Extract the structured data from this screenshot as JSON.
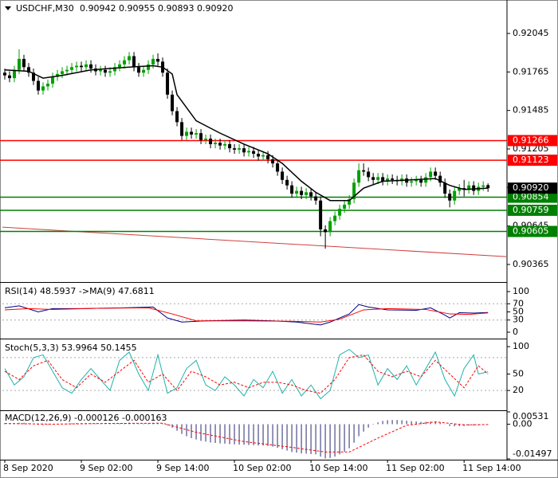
{
  "chart_data": [
    {
      "type": "candlestick",
      "title": "USDCHF,M30",
      "subtitle": "0.90942 0.90955 0.90893 0.90920",
      "categories": [
        "8 Sep 2020",
        null,
        null,
        null,
        null,
        null,
        null,
        null,
        null,
        null,
        null,
        null,
        null,
        null,
        null,
        null,
        "9 Sep 02:00",
        null,
        null,
        null,
        null,
        null,
        null,
        null,
        null,
        null,
        null,
        null,
        null,
        null,
        null,
        null,
        "9 Sep 14:00",
        null,
        null,
        null,
        null,
        null,
        null,
        null,
        null,
        null,
        null,
        null,
        null,
        null,
        null,
        null,
        "10 Sep 02:00",
        null,
        null,
        null,
        null,
        null,
        null,
        null,
        null,
        null,
        null,
        null,
        null,
        null,
        null,
        null,
        "10 Sep 14:00",
        null,
        null,
        null,
        null,
        null,
        null,
        null,
        null,
        null,
        null,
        null,
        null,
        null,
        null,
        null,
        "11 Sep 02:00",
        null,
        null,
        null,
        null,
        null,
        null,
        null,
        null,
        null,
        null,
        null,
        null,
        null,
        null,
        null,
        "11 Sep 14:00",
        null,
        null,
        null,
        null,
        null
      ],
      "open": [
        0.9176,
        0.9174,
        0.9172,
        0.9178,
        0.9186,
        0.918,
        0.9176,
        0.917,
        0.9163,
        0.9166,
        0.9168,
        0.9173,
        0.9175,
        0.9177,
        0.9178,
        0.918,
        0.9181,
        0.918,
        0.9182,
        0.9179,
        0.9177,
        0.9178,
        0.9176,
        0.9177,
        0.918,
        0.9182,
        0.9185,
        0.9188,
        0.918,
        0.9176,
        0.9178,
        0.9182,
        0.9186,
        0.9184,
        0.9176,
        0.916,
        0.9148,
        0.914,
        0.913,
        0.9133,
        0.9131,
        0.9132,
        0.9127,
        0.9128,
        0.9124,
        0.9125,
        0.9123,
        0.9124,
        0.9121,
        0.912,
        0.9121,
        0.9118,
        0.9119,
        0.9117,
        0.9115,
        0.9116,
        0.9113,
        0.911,
        0.9104,
        0.9098,
        0.9094,
        0.9088,
        0.909,
        0.9087,
        0.9089,
        0.9086,
        0.9083,
        0.9062,
        0.906,
        0.9068,
        0.9072,
        0.9077,
        0.908,
        0.9084,
        0.9096,
        0.9105,
        0.9104,
        0.91,
        0.9098,
        0.91,
        0.9097,
        0.9099,
        0.9098,
        0.9097,
        0.9099,
        0.9096,
        0.9097,
        0.9098,
        0.9096,
        0.91,
        0.9104,
        0.9101,
        0.9096,
        0.9088,
        0.9083,
        0.909,
        0.9092,
        0.9091,
        0.9094,
        0.909,
        0.9093,
        0.90942
      ],
      "high": [
        0.9179,
        0.9177,
        0.9181,
        0.9193,
        0.9189,
        0.9183,
        0.9179,
        0.9173,
        0.9169,
        0.9171,
        0.9176,
        0.9178,
        0.918,
        0.9181,
        0.9183,
        0.9184,
        0.9184,
        0.9185,
        0.9185,
        0.9182,
        0.9181,
        0.9181,
        0.918,
        0.9183,
        0.9185,
        0.9188,
        0.9191,
        0.9191,
        0.9183,
        0.9181,
        0.9185,
        0.9189,
        0.919,
        0.9187,
        0.9179,
        0.9163,
        0.9151,
        0.9143,
        0.9136,
        0.9136,
        0.9135,
        0.9135,
        0.9131,
        0.9131,
        0.9128,
        0.9128,
        0.9127,
        0.9127,
        0.9124,
        0.9124,
        0.9124,
        0.9122,
        0.9122,
        0.912,
        0.9119,
        0.9119,
        0.9116,
        0.9113,
        0.9107,
        0.9101,
        0.9097,
        0.9093,
        0.9093,
        0.9092,
        0.9092,
        0.9089,
        0.9086,
        0.9065,
        0.9071,
        0.9075,
        0.908,
        0.9083,
        0.9087,
        0.9099,
        0.911,
        0.911,
        0.9107,
        0.9103,
        0.9103,
        0.9103,
        0.9102,
        0.9102,
        0.9101,
        0.9102,
        0.9102,
        0.91,
        0.9101,
        0.9101,
        0.9103,
        0.9107,
        0.9107,
        0.9104,
        0.9099,
        0.9091,
        0.9093,
        0.9095,
        0.9098,
        0.9097,
        0.9097,
        0.9096,
        0.9097,
        0.90955
      ],
      "low": [
        0.9171,
        0.9169,
        0.9169,
        0.9175,
        0.9177,
        0.9173,
        0.9167,
        0.916,
        0.916,
        0.9163,
        0.9165,
        0.917,
        0.9172,
        0.9174,
        0.9175,
        0.9177,
        0.9177,
        0.9177,
        0.9176,
        0.9174,
        0.9174,
        0.9173,
        0.9173,
        0.9174,
        0.9177,
        0.9179,
        0.9182,
        0.9177,
        0.9173,
        0.9173,
        0.9175,
        0.9179,
        0.9181,
        0.9173,
        0.9157,
        0.9145,
        0.9137,
        0.9127,
        0.9127,
        0.9128,
        0.9128,
        0.9124,
        0.9124,
        0.9121,
        0.9121,
        0.912,
        0.912,
        0.9118,
        0.9117,
        0.9117,
        0.9115,
        0.9115,
        0.9114,
        0.9112,
        0.9112,
        0.911,
        0.9107,
        0.9101,
        0.9095,
        0.9091,
        0.9085,
        0.9085,
        0.9084,
        0.9084,
        0.9083,
        0.908,
        0.9057,
        0.9048,
        0.9057,
        0.9065,
        0.9069,
        0.9074,
        0.9077,
        0.9081,
        0.9093,
        0.9101,
        0.9097,
        0.9095,
        0.9095,
        0.9094,
        0.9094,
        0.9095,
        0.9094,
        0.9094,
        0.9093,
        0.9093,
        0.9094,
        0.9093,
        0.9093,
        0.9097,
        0.9098,
        0.9093,
        0.9085,
        0.9078,
        0.908,
        0.9087,
        0.9086,
        0.9088,
        0.9087,
        0.9087,
        0.909,
        0.90893
      ],
      "close": [
        0.9174,
        0.9172,
        0.9178,
        0.9186,
        0.918,
        0.9176,
        0.917,
        0.9163,
        0.9166,
        0.9168,
        0.9173,
        0.9175,
        0.9177,
        0.9178,
        0.918,
        0.9181,
        0.918,
        0.9182,
        0.9179,
        0.9177,
        0.9178,
        0.9176,
        0.9177,
        0.918,
        0.9182,
        0.9185,
        0.9188,
        0.918,
        0.9176,
        0.9178,
        0.9182,
        0.9186,
        0.9184,
        0.9176,
        0.916,
        0.9148,
        0.914,
        0.913,
        0.9133,
        0.9131,
        0.9132,
        0.9127,
        0.9128,
        0.9124,
        0.9125,
        0.9123,
        0.9124,
        0.9121,
        0.912,
        0.9121,
        0.9118,
        0.9119,
        0.9117,
        0.9115,
        0.9116,
        0.9113,
        0.911,
        0.9104,
        0.9098,
        0.9094,
        0.9088,
        0.909,
        0.9087,
        0.9089,
        0.9086,
        0.9083,
        0.9062,
        0.906,
        0.9068,
        0.9072,
        0.9077,
        0.908,
        0.9084,
        0.9096,
        0.9105,
        0.9104,
        0.91,
        0.9098,
        0.91,
        0.9097,
        0.9099,
        0.9098,
        0.9097,
        0.9099,
        0.9096,
        0.9097,
        0.9098,
        0.9096,
        0.91,
        0.9104,
        0.9101,
        0.9096,
        0.9088,
        0.9083,
        0.909,
        0.9092,
        0.9091,
        0.9094,
        0.909,
        0.9093,
        0.9094,
        0.9092
      ],
      "up_color": "#00a000",
      "down_color": "#000000",
      "ma": {
        "color": "#000000",
        "x": [
          0,
          5,
          8,
          12,
          18,
          26,
          31,
          33,
          35,
          36,
          40,
          45,
          50,
          55,
          58,
          62,
          65,
          68,
          72,
          75,
          79,
          85,
          90,
          93,
          96,
          101
        ],
        "values": [
          0.9178,
          0.9177,
          0.9172,
          0.9174,
          0.9178,
          0.918,
          0.9181,
          0.918,
          0.9175,
          0.916,
          0.9141,
          0.9132,
          0.9124,
          0.9117,
          0.911,
          0.9097,
          0.9089,
          0.9083,
          0.9083,
          0.9092,
          0.9097,
          0.9098,
          0.9099,
          0.9094,
          0.9091,
          0.9092
        ]
      },
      "trendline": {
        "color": "#d04040",
        "x": [
          -0.5,
          104.8
        ],
        "values": [
          0.90636,
          0.90422
        ]
      },
      "hlines": [
        {
          "value": 0.91266,
          "color": "#ff0000"
        },
        {
          "value": 0.91123,
          "color": "#ff0000"
        },
        {
          "value": 0.90854,
          "color": "#008000"
        },
        {
          "value": 0.90759,
          "color": "#008000"
        },
        {
          "value": 0.90605,
          "color": "#008000"
        }
      ],
      "current": {
        "value": 0.9092,
        "label": "0.90920",
        "color": "#000000"
      },
      "xlim": [
        -0.5,
        104.8
      ],
      "ylim": [
        0.90243,
        0.92271
      ],
      "yticks": [
        0.92045,
        0.91765,
        0.91485,
        0.91205,
        0.90925,
        0.90645,
        0.90365
      ]
    },
    {
      "type": "line",
      "title": "RSI(14) 48.5937  ->MA(9) 47.6811",
      "series": [
        {
          "color": "#000080",
          "x": [
            0,
            3,
            7,
            10,
            16,
            25,
            31,
            34,
            37,
            42,
            50,
            56,
            61,
            66,
            68,
            72,
            74,
            76,
            80,
            86,
            89,
            92,
            93,
            95,
            98,
            101
          ],
          "values": [
            60,
            65,
            50,
            58,
            58,
            60,
            62,
            35,
            25,
            28,
            30,
            28,
            25,
            18,
            25,
            45,
            68,
            62,
            55,
            54,
            60,
            42,
            35,
            48,
            47,
            48.5937
          ]
        },
        {
          "color": "#ff0000",
          "x": [
            0,
            5,
            10,
            20,
            30,
            35,
            40,
            50,
            60,
            66,
            70,
            75,
            80,
            88,
            93,
            97,
            101
          ],
          "values": [
            55,
            58,
            56,
            59,
            60,
            45,
            28,
            28,
            27,
            25,
            32,
            55,
            58,
            56,
            45,
            44,
            47.6811
          ]
        }
      ],
      "levels": [
        70,
        30
      ],
      "ylim": [
        -13.7,
        119.6
      ],
      "yticks": [
        100,
        70,
        50,
        30,
        0
      ]
    },
    {
      "type": "line",
      "title": "Stoch(5,3,3) 53.9964 50.1455",
      "series": [
        {
          "color": "#20b2aa",
          "x": [
            0,
            2,
            4,
            6,
            8,
            10,
            12,
            14,
            16,
            18,
            20,
            22,
            24,
            26,
            28,
            30,
            32,
            34,
            36,
            38,
            40,
            42,
            44,
            46,
            48,
            50,
            52,
            54,
            56,
            58,
            60,
            62,
            64,
            66,
            68,
            70,
            72,
            74,
            76,
            78,
            80,
            82,
            84,
            86,
            88,
            90,
            92,
            94,
            96,
            98,
            99,
            101
          ],
          "values": [
            60,
            30,
            45,
            80,
            85,
            55,
            25,
            15,
            40,
            60,
            40,
            20,
            75,
            90,
            50,
            20,
            85,
            15,
            25,
            60,
            75,
            30,
            20,
            45,
            30,
            10,
            40,
            25,
            55,
            15,
            40,
            10,
            30,
            5,
            20,
            85,
            95,
            80,
            85,
            30,
            60,
            40,
            65,
            30,
            60,
            90,
            40,
            10,
            60,
            85,
            50,
            53.9964
          ]
        },
        {
          "color": "#ff0000",
          "dashed": true,
          "x": [
            0,
            3,
            6,
            9,
            12,
            15,
            18,
            21,
            24,
            27,
            30,
            33,
            36,
            39,
            42,
            45,
            48,
            51,
            54,
            57,
            60,
            63,
            66,
            69,
            72,
            75,
            78,
            81,
            84,
            87,
            90,
            93,
            96,
            99,
            101
          ],
          "values": [
            55,
            40,
            65,
            75,
            40,
            25,
            50,
            35,
            55,
            75,
            35,
            50,
            20,
            55,
            45,
            30,
            35,
            25,
            35,
            35,
            30,
            20,
            15,
            40,
            80,
            85,
            55,
            45,
            55,
            45,
            75,
            50,
            25,
            65,
            50.1455
          ]
        }
      ],
      "levels": [
        80,
        20
      ],
      "ylim": [
        -14.7,
        111.8
      ],
      "yticks": [
        100,
        50,
        20
      ]
    },
    {
      "type": "bar",
      "title": "MACD(12,26,9) -0.000126 -0.000163",
      "color": "#7070a0",
      "values": [
        0.0005,
        0.0004,
        0.0004,
        0.0006,
        0.0006,
        0.0004,
        0.0001,
        -0.0003,
        -0.0004,
        -0.0003,
        -0.0001,
        0.0001,
        0.0002,
        0.0003,
        0.0004,
        0.0005,
        0.0005,
        0.0005,
        0.0004,
        0.0003,
        0.0003,
        0.0002,
        0.0002,
        0.0003,
        0.0004,
        0.0005,
        0.0007,
        0.0005,
        0.0003,
        0.0003,
        0.0004,
        0.0006,
        0.0006,
        0.0003,
        -0.0005,
        -0.0015,
        -0.0028,
        -0.0042,
        -0.0052,
        -0.006,
        -0.0066,
        -0.0072,
        -0.0075,
        -0.0079,
        -0.0081,
        -0.0083,
        -0.0084,
        -0.0086,
        -0.0087,
        -0.0088,
        -0.0089,
        -0.009,
        -0.0091,
        -0.0092,
        -0.0092,
        -0.0094,
        -0.0097,
        -0.0102,
        -0.0108,
        -0.0114,
        -0.012,
        -0.0123,
        -0.0126,
        -0.0127,
        -0.0129,
        -0.013,
        -0.014,
        -0.0148,
        -0.0146,
        -0.014,
        -0.013,
        -0.0118,
        -0.0104,
        -0.008,
        -0.0052,
        -0.0032,
        -0.0015,
        -0.0002,
        0.0008,
        0.0014,
        0.0017,
        0.0018,
        0.0018,
        0.0017,
        0.0015,
        0.0013,
        0.0012,
        0.001,
        0.001,
        0.0011,
        0.001,
        0.0006,
        -0.0001,
        -0.0008,
        -0.0009,
        -0.0008,
        -0.0008,
        -0.0006,
        -0.0006,
        -0.0005,
        -0.0003,
        -0.000126
      ],
      "series": [
        {
          "color": "#ff0000",
          "dashed": true,
          "x": [
            0,
            10,
            20,
            33,
            40,
            50,
            60,
            67,
            72,
            78,
            84,
            90,
            96,
            101
          ],
          "values": [
            0.0003,
            0,
            0.0003,
            0.0004,
            -0.0035,
            -0.0075,
            -0.01,
            -0.012,
            -0.012,
            -0.006,
            -0.0005,
            0.001,
            -0.0003,
            -0.000163
          ]
        }
      ],
      "ylim": [
        -0.01497,
        0.00531
      ],
      "yticks": [
        0.00531,
        {
          "value": 0,
          "label": "0.00"
        },
        -0.01497
      ]
    }
  ]
}
